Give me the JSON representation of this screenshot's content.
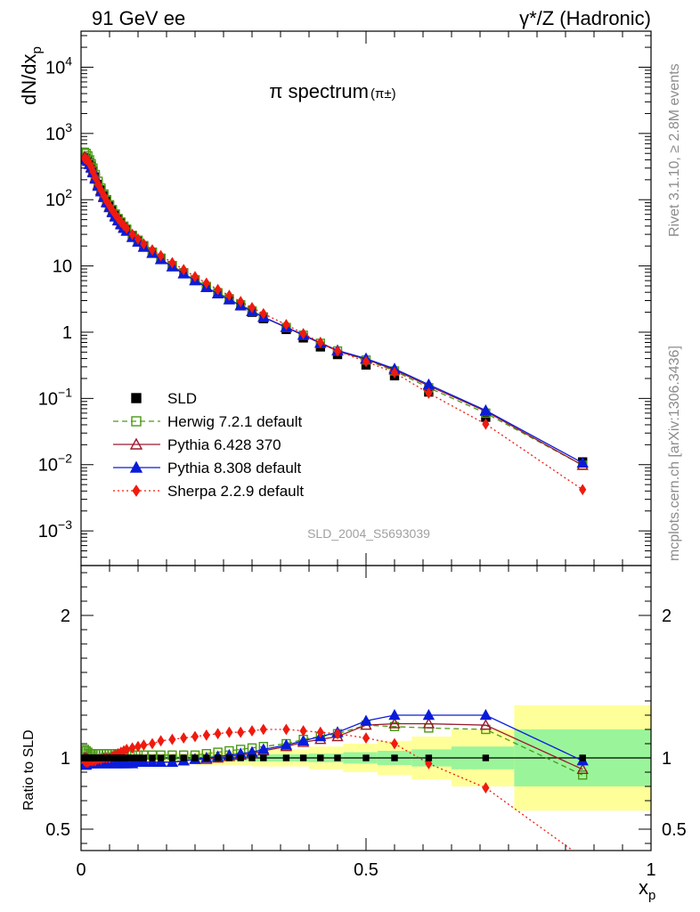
{
  "header": {
    "left": "91 GeV ee",
    "right": "γ*/Z (Hadronic)"
  },
  "side": {
    "rivet": "Rivet 3.1.10, ≥ 2.8M events",
    "source": "mcplots.cern.ch [arXiv:1306.3436]"
  },
  "chart_data": [
    {
      "type": "scatter",
      "panel": "main",
      "title": "π spectrum",
      "subtitle": "(π±)",
      "ylabel": "dN/dxp",
      "yscale": "log",
      "ylim": [
        0.0003,
        35000
      ],
      "xlim": [
        0,
        1
      ],
      "analysis_label": "SLD_2004_S5693039",
      "legend_position": "lower-left",
      "x": [
        0.006,
        0.009,
        0.012,
        0.015,
        0.018,
        0.021,
        0.025,
        0.03,
        0.035,
        0.04,
        0.045,
        0.05,
        0.055,
        0.06,
        0.065,
        0.07,
        0.075,
        0.08,
        0.09,
        0.1,
        0.11,
        0.125,
        0.14,
        0.16,
        0.18,
        0.2,
        0.22,
        0.24,
        0.26,
        0.28,
        0.3,
        0.32,
        0.36,
        0.39,
        0.42,
        0.45,
        0.5,
        0.55,
        0.61,
        0.71,
        0.88
      ],
      "series": [
        {
          "name": "SLD",
          "color": "#000000",
          "marker": "square-filled",
          "line": "none",
          "values": [
            430,
            420,
            400,
            360,
            320,
            270,
            220,
            170,
            140,
            115,
            95,
            80,
            68,
            58,
            50,
            44,
            39,
            35,
            28,
            24,
            20,
            16,
            13,
            10.1,
            7.8,
            6.1,
            4.8,
            3.8,
            3.1,
            2.5,
            2.0,
            1.6,
            1.1,
            0.82,
            0.6,
            0.46,
            0.32,
            0.22,
            0.125,
            0.052,
            0.011
          ]
        },
        {
          "name": "Herwig 7.2.1 default",
          "color": "#4a9a16",
          "marker": "square-open",
          "line": "dashed",
          "values": [
            520,
            500,
            460,
            400,
            350,
            300,
            240,
            190,
            150,
            122,
            100,
            84,
            71,
            61,
            52,
            46,
            40,
            36,
            29,
            24.5,
            20.3,
            16.2,
            13.1,
            10.1,
            7.9,
            6.2,
            4.9,
            3.95,
            3.2,
            2.6,
            2.1,
            1.7,
            1.18,
            0.9,
            0.68,
            0.52,
            0.38,
            0.26,
            0.145,
            0.06,
            0.0098
          ]
        },
        {
          "name": "Pythia 6.428 370",
          "color": "#9a1a2e",
          "marker": "triangle-open",
          "line": "solid",
          "values": [
            440,
            420,
            390,
            350,
            310,
            265,
            215,
            168,
            138,
            112,
            93,
            78,
            66,
            57,
            49,
            43,
            38,
            34,
            27.3,
            23,
            19.3,
            15.6,
            12.6,
            9.8,
            7.7,
            6.0,
            4.75,
            3.8,
            3.1,
            2.52,
            2.06,
            1.68,
            1.18,
            0.9,
            0.68,
            0.52,
            0.39,
            0.27,
            0.155,
            0.064,
            0.0098
          ]
        },
        {
          "name": "Pythia 8.308 default",
          "color": "#0b1cd9",
          "marker": "triangle-filled",
          "line": "solid",
          "values": [
            410,
            400,
            380,
            340,
            300,
            255,
            205,
            160,
            132,
            108,
            90,
            76,
            64,
            55,
            48,
            42,
            37,
            33.5,
            27,
            23,
            19.2,
            15.5,
            12.5,
            9.7,
            7.6,
            6.0,
            4.75,
            3.8,
            3.1,
            2.52,
            2.06,
            1.68,
            1.19,
            0.91,
            0.69,
            0.53,
            0.4,
            0.28,
            0.162,
            0.066,
            0.0106
          ]
        },
        {
          "name": "Sherpa 2.2.9 default",
          "color": "#f01a0f",
          "marker": "diamond-filled",
          "line": "dotted",
          "values": [
            420,
            405,
            385,
            350,
            310,
            265,
            215,
            170,
            140,
            115,
            95,
            81,
            69,
            60,
            52,
            46,
            41,
            37,
            30,
            25.5,
            21.5,
            17.5,
            14.3,
            11.2,
            8.8,
            6.9,
            5.5,
            4.4,
            3.6,
            2.9,
            2.35,
            1.9,
            1.3,
            0.95,
            0.7,
            0.52,
            0.36,
            0.245,
            0.12,
            0.041,
            0.0042
          ]
        }
      ]
    },
    {
      "type": "line",
      "panel": "ratio",
      "ylabel": "Ratio to SLD",
      "xlabel": "xp",
      "ylim": [
        0.35,
        2.35
      ],
      "xlim": [
        0,
        1
      ],
      "yticks": [
        0.5,
        1,
        2
      ],
      "xticks": [
        0,
        0.5,
        1
      ],
      "uncertainty_bands": {
        "edges": [
          0.0,
          0.02,
          0.05,
          0.1,
          0.2,
          0.3,
          0.4,
          0.46,
          0.52,
          0.58,
          0.65,
          0.76,
          1.0
        ],
        "stat_half_width": [
          0.01,
          0.01,
          0.012,
          0.015,
          0.02,
          0.025,
          0.03,
          0.04,
          0.05,
          0.06,
          0.08,
          0.2
        ],
        "syst_half_width": [
          0.02,
          0.025,
          0.03,
          0.035,
          0.05,
          0.06,
          0.08,
          0.1,
          0.12,
          0.15,
          0.2,
          0.37
        ],
        "stat_color": "#9af59a",
        "syst_color": "#ffff99"
      },
      "series": [
        {
          "name": "Herwig 7.2.1 default",
          "color": "#4a9a16",
          "values": [
            1.06,
            1.05,
            1.04,
            1.03,
            1.03,
            1.03,
            1.03,
            1.03,
            1.03,
            1.03,
            1.03,
            1.03,
            1.03,
            1.03,
            1.03,
            1.03,
            1.03,
            1.02,
            1.02,
            1.02,
            1.02,
            1.02,
            1.02,
            1.02,
            1.02,
            1.02,
            1.03,
            1.04,
            1.05,
            1.06,
            1.07,
            1.08,
            1.1,
            1.13,
            1.15,
            1.17,
            1.23,
            1.22,
            1.21,
            1.2,
            0.88
          ]
        },
        {
          "name": "Pythia 6.428 370",
          "color": "#9a1a2e",
          "values": [
            1.0,
            1.0,
            0.99,
            0.98,
            0.98,
            0.98,
            0.98,
            0.98,
            0.98,
            0.98,
            0.98,
            0.98,
            0.98,
            0.98,
            0.98,
            0.98,
            0.98,
            0.98,
            0.98,
            0.97,
            0.97,
            0.97,
            0.97,
            0.97,
            0.98,
            0.99,
            0.99,
            1.0,
            1.01,
            1.02,
            1.03,
            1.05,
            1.08,
            1.11,
            1.13,
            1.15,
            1.23,
            1.24,
            1.24,
            1.23,
            0.92
          ]
        },
        {
          "name": "Pythia 8.308 default",
          "color": "#0b1cd9",
          "values": [
            0.95,
            0.95,
            0.96,
            0.96,
            0.96,
            0.96,
            0.96,
            0.96,
            0.96,
            0.96,
            0.96,
            0.96,
            0.96,
            0.96,
            0.96,
            0.96,
            0.96,
            0.96,
            0.96,
            0.97,
            0.97,
            0.97,
            0.97,
            0.97,
            0.98,
            0.99,
            1.0,
            1.01,
            1.02,
            1.03,
            1.04,
            1.06,
            1.09,
            1.12,
            1.15,
            1.18,
            1.26,
            1.3,
            1.3,
            1.3,
            0.98
          ]
        },
        {
          "name": "Sherpa 2.2.9 default",
          "color": "#f01a0f",
          "values": [
            0.98,
            0.97,
            0.97,
            0.98,
            0.98,
            0.98,
            0.98,
            0.99,
            0.99,
            1.0,
            1.0,
            1.0,
            1.01,
            1.02,
            1.03,
            1.04,
            1.05,
            1.06,
            1.07,
            1.08,
            1.09,
            1.1,
            1.12,
            1.13,
            1.14,
            1.15,
            1.16,
            1.17,
            1.18,
            1.18,
            1.19,
            1.2,
            1.2,
            1.19,
            1.18,
            1.17,
            1.14,
            1.1,
            0.96,
            0.79,
            0.3
          ]
        }
      ]
    }
  ]
}
